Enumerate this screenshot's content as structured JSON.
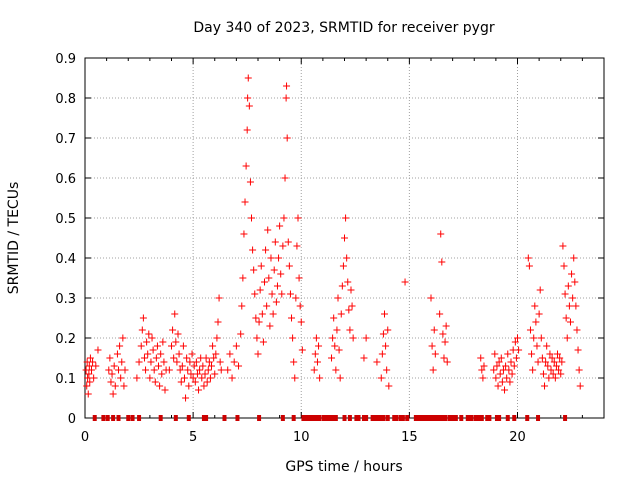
{
  "chart_data": {
    "type": "scatter",
    "title": "Day 340 of 2023, SRMTID for receiver pygr",
    "xlabel": "GPS time / hours",
    "ylabel": "SRMTID / TECUs",
    "xlim": [
      0,
      24
    ],
    "ylim": [
      0,
      0.9
    ],
    "xticks": [
      0,
      5,
      10,
      15,
      20
    ],
    "xtick_labels": [
      "0",
      "5",
      "10",
      "15",
      "20"
    ],
    "yticks": [
      0,
      0.1,
      0.2,
      0.3,
      0.4,
      0.5,
      0.6,
      0.7,
      0.8,
      0.9
    ],
    "ytick_labels": [
      "0",
      "0.1",
      "0.2",
      "0.3",
      "0.4",
      "0.5",
      "0.6",
      "0.7",
      "0.8",
      "0.9"
    ],
    "grid": true,
    "marker_color": "#ff0000",
    "gap_marker_color": "#cc0000",
    "series": [
      {
        "name": "SRMTID",
        "marker": "plus",
        "points": [
          [
            0.05,
            0.12
          ],
          [
            0.08,
            0.08
          ],
          [
            0.1,
            0.14
          ],
          [
            0.12,
            0.1
          ],
          [
            0.15,
            0.06
          ],
          [
            0.18,
            0.11
          ],
          [
            0.2,
            0.13
          ],
          [
            0.22,
            0.09
          ],
          [
            0.25,
            0.15
          ],
          [
            0.3,
            0.12
          ],
          [
            0.35,
            0.14
          ],
          [
            0.4,
            0.1
          ],
          [
            0.5,
            0.13
          ],
          [
            0.6,
            0.17
          ],
          [
            1.1,
            0.12
          ],
          [
            1.15,
            0.15
          ],
          [
            1.2,
            0.09
          ],
          [
            1.25,
            0.11
          ],
          [
            1.3,
            0.06
          ],
          [
            1.35,
            0.13
          ],
          [
            1.4,
            0.08
          ],
          [
            1.5,
            0.16
          ],
          [
            1.55,
            0.12
          ],
          [
            1.6,
            0.18
          ],
          [
            1.65,
            0.1
          ],
          [
            1.7,
            0.14
          ],
          [
            1.75,
            0.2
          ],
          [
            1.8,
            0.08
          ],
          [
            1.85,
            0.12
          ],
          [
            2.4,
            0.1
          ],
          [
            2.5,
            0.14
          ],
          [
            2.6,
            0.18
          ],
          [
            2.65,
            0.22
          ],
          [
            2.7,
            0.25
          ],
          [
            2.75,
            0.15
          ],
          [
            2.8,
            0.12
          ],
          [
            2.85,
            0.19
          ],
          [
            2.9,
            0.16
          ],
          [
            2.95,
            0.21
          ],
          [
            3.0,
            0.1
          ],
          [
            3.05,
            0.14
          ],
          [
            3.1,
            0.2
          ],
          [
            3.15,
            0.17
          ],
          [
            3.2,
            0.12
          ],
          [
            3.25,
            0.09
          ],
          [
            3.3,
            0.15
          ],
          [
            3.35,
            0.18
          ],
          [
            3.4,
            0.13
          ],
          [
            3.45,
            0.08
          ],
          [
            3.5,
            0.16
          ],
          [
            3.55,
            0.11
          ],
          [
            3.6,
            0.19
          ],
          [
            3.65,
            0.14
          ],
          [
            3.7,
            0.07
          ],
          [
            3.75,
            0.12
          ],
          [
            3.9,
            0.12
          ],
          [
            4.0,
            0.18
          ],
          [
            4.05,
            0.22
          ],
          [
            4.1,
            0.15
          ],
          [
            4.15,
            0.26
          ],
          [
            4.2,
            0.19
          ],
          [
            4.25,
            0.14
          ],
          [
            4.3,
            0.21
          ],
          [
            4.35,
            0.16
          ],
          [
            4.4,
            0.12
          ],
          [
            4.45,
            0.09
          ],
          [
            4.5,
            0.13
          ],
          [
            4.55,
            0.18
          ],
          [
            4.6,
            0.1
          ],
          [
            4.65,
            0.05
          ],
          [
            4.7,
            0.15
          ],
          [
            4.75,
            0.12
          ],
          [
            4.8,
            0.08
          ],
          [
            4.85,
            0.14
          ],
          [
            4.9,
            0.11
          ],
          [
            4.95,
            0.16
          ],
          [
            5.0,
            0.1
          ],
          [
            5.05,
            0.13
          ],
          [
            5.1,
            0.09
          ],
          [
            5.15,
            0.14
          ],
          [
            5.2,
            0.11
          ],
          [
            5.25,
            0.07
          ],
          [
            5.3,
            0.12
          ],
          [
            5.35,
            0.15
          ],
          [
            5.4,
            0.1
          ],
          [
            5.45,
            0.13
          ],
          [
            5.5,
            0.08
          ],
          [
            5.55,
            0.11
          ],
          [
            5.6,
            0.15
          ],
          [
            5.65,
            0.09
          ],
          [
            5.7,
            0.12
          ],
          [
            5.75,
            0.14
          ],
          [
            5.8,
            0.1
          ],
          [
            5.85,
            0.13
          ],
          [
            5.9,
            0.18
          ],
          [
            5.95,
            0.15
          ],
          [
            6.0,
            0.11
          ],
          [
            6.05,
            0.16
          ],
          [
            6.1,
            0.2
          ],
          [
            6.15,
            0.24
          ],
          [
            6.2,
            0.3
          ],
          [
            6.25,
            0.14
          ],
          [
            6.3,
            0.12
          ],
          [
            6.6,
            0.12
          ],
          [
            6.7,
            0.16
          ],
          [
            6.8,
            0.1
          ],
          [
            6.9,
            0.14
          ],
          [
            7.0,
            0.18
          ],
          [
            7.1,
            0.13
          ],
          [
            7.2,
            0.21
          ],
          [
            7.25,
            0.28
          ],
          [
            7.3,
            0.35
          ],
          [
            7.35,
            0.46
          ],
          [
            7.4,
            0.54
          ],
          [
            7.45,
            0.63
          ],
          [
            7.5,
            0.72
          ],
          [
            7.52,
            0.8
          ],
          [
            7.55,
            0.85
          ],
          [
            7.6,
            0.78
          ],
          [
            7.65,
            0.59
          ],
          [
            7.7,
            0.5
          ],
          [
            7.75,
            0.42
          ],
          [
            7.8,
            0.37
          ],
          [
            7.85,
            0.31
          ],
          [
            7.9,
            0.25
          ],
          [
            7.95,
            0.2
          ],
          [
            8.0,
            0.16
          ],
          [
            8.05,
            0.24
          ],
          [
            8.1,
            0.32
          ],
          [
            8.15,
            0.38
          ],
          [
            8.2,
            0.26
          ],
          [
            8.25,
            0.19
          ],
          [
            8.3,
            0.34
          ],
          [
            8.35,
            0.42
          ],
          [
            8.4,
            0.28
          ],
          [
            8.45,
            0.47
          ],
          [
            8.5,
            0.35
          ],
          [
            8.55,
            0.23
          ],
          [
            8.6,
            0.4
          ],
          [
            8.65,
            0.31
          ],
          [
            8.7,
            0.26
          ],
          [
            8.75,
            0.37
          ],
          [
            8.8,
            0.44
          ],
          [
            8.85,
            0.29
          ],
          [
            8.9,
            0.33
          ],
          [
            8.95,
            0.4
          ],
          [
            9.0,
            0.48
          ],
          [
            9.05,
            0.36
          ],
          [
            9.1,
            0.31
          ],
          [
            9.15,
            0.43
          ],
          [
            9.2,
            0.5
          ],
          [
            9.25,
            0.6
          ],
          [
            9.3,
            0.8
          ],
          [
            9.32,
            0.83
          ],
          [
            9.35,
            0.7
          ],
          [
            9.4,
            0.44
          ],
          [
            9.45,
            0.38
          ],
          [
            9.5,
            0.31
          ],
          [
            9.55,
            0.25
          ],
          [
            9.6,
            0.2
          ],
          [
            9.65,
            0.14
          ],
          [
            9.7,
            0.1
          ],
          [
            9.75,
            0.3
          ],
          [
            9.8,
            0.43
          ],
          [
            9.85,
            0.5
          ],
          [
            9.9,
            0.35
          ],
          [
            9.95,
            0.28
          ],
          [
            10.0,
            0.24
          ],
          [
            10.05,
            0.17
          ],
          [
            10.6,
            0.12
          ],
          [
            10.65,
            0.16
          ],
          [
            10.7,
            0.2
          ],
          [
            10.75,
            0.14
          ],
          [
            10.8,
            0.18
          ],
          [
            10.85,
            0.1
          ],
          [
            11.4,
            0.15
          ],
          [
            11.45,
            0.2
          ],
          [
            11.5,
            0.25
          ],
          [
            11.55,
            0.18
          ],
          [
            11.6,
            0.12
          ],
          [
            11.65,
            0.22
          ],
          [
            11.7,
            0.3
          ],
          [
            11.75,
            0.17
          ],
          [
            11.8,
            0.1
          ],
          [
            11.85,
            0.26
          ],
          [
            11.9,
            0.33
          ],
          [
            11.95,
            0.38
          ],
          [
            12.0,
            0.45
          ],
          [
            12.05,
            0.5
          ],
          [
            12.1,
            0.4
          ],
          [
            12.15,
            0.34
          ],
          [
            12.2,
            0.27
          ],
          [
            12.25,
            0.22
          ],
          [
            12.3,
            0.32
          ],
          [
            12.35,
            0.28
          ],
          [
            12.4,
            0.2
          ],
          [
            12.9,
            0.15
          ],
          [
            13.0,
            0.2
          ],
          [
            13.5,
            0.14
          ],
          [
            13.7,
            0.1
          ],
          [
            13.75,
            0.16
          ],
          [
            13.8,
            0.21
          ],
          [
            13.85,
            0.26
          ],
          [
            13.9,
            0.18
          ],
          [
            13.95,
            0.12
          ],
          [
            14.0,
            0.22
          ],
          [
            14.05,
            0.08
          ],
          [
            14.8,
            0.34
          ],
          [
            16.0,
            0.3
          ],
          [
            16.05,
            0.18
          ],
          [
            16.1,
            0.12
          ],
          [
            16.15,
            0.22
          ],
          [
            16.2,
            0.16
          ],
          [
            16.4,
            0.26
          ],
          [
            16.45,
            0.46
          ],
          [
            16.5,
            0.39
          ],
          [
            16.55,
            0.21
          ],
          [
            16.6,
            0.15
          ],
          [
            16.65,
            0.19
          ],
          [
            16.7,
            0.23
          ],
          [
            16.75,
            0.14
          ],
          [
            18.3,
            0.15
          ],
          [
            18.35,
            0.12
          ],
          [
            18.4,
            0.1
          ],
          [
            18.45,
            0.13
          ],
          [
            18.9,
            0.12
          ],
          [
            18.95,
            0.16
          ],
          [
            19.0,
            0.1
          ],
          [
            19.05,
            0.13
          ],
          [
            19.1,
            0.08
          ],
          [
            19.15,
            0.14
          ],
          [
            19.2,
            0.11
          ],
          [
            19.25,
            0.15
          ],
          [
            19.3,
            0.09
          ],
          [
            19.35,
            0.12
          ],
          [
            19.4,
            0.07
          ],
          [
            19.45,
            0.13
          ],
          [
            19.5,
            0.1
          ],
          [
            19.55,
            0.16
          ],
          [
            19.6,
            0.12
          ],
          [
            19.65,
            0.09
          ],
          [
            19.7,
            0.14
          ],
          [
            19.75,
            0.11
          ],
          [
            19.8,
            0.17
          ],
          [
            19.85,
            0.13
          ],
          [
            19.9,
            0.19
          ],
          [
            19.95,
            0.15
          ],
          [
            20.0,
            0.2
          ],
          [
            20.05,
            0.17
          ],
          [
            20.5,
            0.4
          ],
          [
            20.55,
            0.38
          ],
          [
            20.6,
            0.22
          ],
          [
            20.65,
            0.16
          ],
          [
            20.7,
            0.12
          ],
          [
            20.75,
            0.2
          ],
          [
            20.8,
            0.28
          ],
          [
            20.85,
            0.24
          ],
          [
            20.9,
            0.18
          ],
          [
            20.95,
            0.14
          ],
          [
            21.0,
            0.26
          ],
          [
            21.05,
            0.32
          ],
          [
            21.1,
            0.2
          ],
          [
            21.15,
            0.15
          ],
          [
            21.2,
            0.11
          ],
          [
            21.25,
            0.08
          ],
          [
            21.3,
            0.14
          ],
          [
            21.35,
            0.18
          ],
          [
            21.4,
            0.13
          ],
          [
            21.45,
            0.1
          ],
          [
            21.5,
            0.16
          ],
          [
            21.55,
            0.12
          ],
          [
            21.6,
            0.15
          ],
          [
            21.65,
            0.11
          ],
          [
            21.7,
            0.14
          ],
          [
            21.75,
            0.1
          ],
          [
            21.8,
            0.13
          ],
          [
            21.85,
            0.16
          ],
          [
            21.9,
            0.12
          ],
          [
            21.95,
            0.15
          ],
          [
            22.0,
            0.11
          ],
          [
            22.05,
            0.14
          ],
          [
            22.1,
            0.43
          ],
          [
            22.15,
            0.38
          ],
          [
            22.2,
            0.31
          ],
          [
            22.25,
            0.25
          ],
          [
            22.3,
            0.2
          ],
          [
            22.35,
            0.33
          ],
          [
            22.4,
            0.28
          ],
          [
            22.45,
            0.24
          ],
          [
            22.5,
            0.36
          ],
          [
            22.55,
            0.3
          ],
          [
            22.6,
            0.4
          ],
          [
            22.65,
            0.34
          ],
          [
            22.7,
            0.28
          ],
          [
            22.75,
            0.22
          ],
          [
            22.8,
            0.17
          ],
          [
            22.85,
            0.12
          ],
          [
            22.9,
            0.08
          ]
        ]
      }
    ],
    "zero_markers_x": [
      0.45,
      0.85,
      1.05,
      1.3,
      1.55,
      2.0,
      2.2,
      2.5,
      3.5,
      4.2,
      4.8,
      5.5,
      5.6,
      6.45,
      7.05,
      8.05,
      9.15,
      9.65,
      10.1,
      10.25,
      10.4,
      10.55,
      10.7,
      10.85,
      11.05,
      11.2,
      11.3,
      11.45,
      11.6,
      12.0,
      12.25,
      12.55,
      12.65,
      12.9,
      13.0,
      13.3,
      13.4,
      13.55,
      13.7,
      13.8,
      14.0,
      14.3,
      14.4,
      14.6,
      14.7,
      14.9,
      15.3,
      15.45,
      15.6,
      15.75,
      15.9,
      16.05,
      16.2,
      16.35,
      16.5,
      16.65,
      16.85,
      17.0,
      17.15,
      17.4,
      17.7,
      17.85,
      18.05,
      18.2,
      18.35,
      18.6,
      18.7,
      19.05,
      19.15,
      19.55,
      19.85,
      20.45,
      20.95,
      22.2
    ]
  }
}
